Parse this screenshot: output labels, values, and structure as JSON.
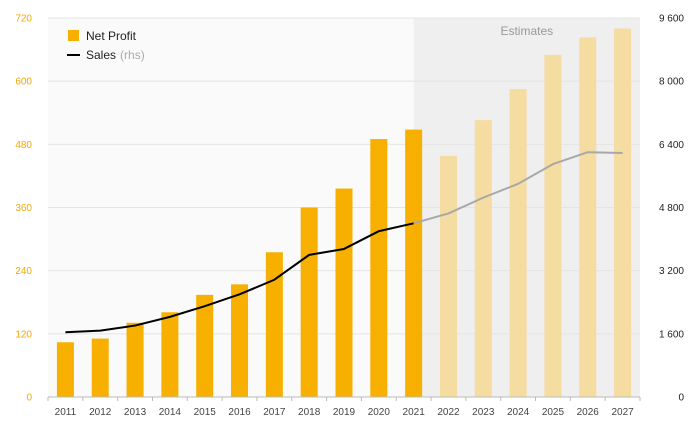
{
  "chart_data": {
    "type": "bar",
    "categories": [
      "2011",
      "2012",
      "2013",
      "2014",
      "2015",
      "2016",
      "2017",
      "2018",
      "2019",
      "2020",
      "2021",
      "2022",
      "2023",
      "2024",
      "2025",
      "2026",
      "2027"
    ],
    "series": [
      {
        "name": "Net Profit",
        "kind": "bar",
        "axis": "left",
        "values": [
          104,
          111,
          141,
          161,
          194,
          214,
          275,
          360,
          396,
          490,
          508,
          458,
          526,
          585,
          650,
          683,
          700
        ]
      },
      {
        "name": "Sales",
        "name_suffix": "(rhs)",
        "kind": "line",
        "axis": "right",
        "values": [
          1640,
          1680,
          1810,
          2030,
          2300,
          2600,
          2970,
          3600,
          3750,
          4200,
          4400,
          4650,
          5050,
          5400,
          5900,
          6200,
          6180
        ]
      }
    ],
    "estimates_from": "2022",
    "estimates_label": "Estimates",
    "left_axis": {
      "min": 0,
      "max": 720,
      "ticks": [
        "0",
        "120",
        "240",
        "360",
        "480",
        "600",
        "720"
      ]
    },
    "right_axis": {
      "min": 0,
      "max": 9600,
      "ticks": [
        "0",
        "1 600",
        "3 200",
        "4 800",
        "6 400",
        "8 000",
        "9 600"
      ]
    },
    "grid": true,
    "legend": "top-left",
    "colors": {
      "bar": "#f7b000",
      "bar_estimate": "#f5dca0",
      "line": "#000000",
      "line_estimate": "#a8a8a8",
      "estimate_band": "#efefef",
      "plot_bg": "#fafafa",
      "left_tick": "#f5a800"
    }
  }
}
